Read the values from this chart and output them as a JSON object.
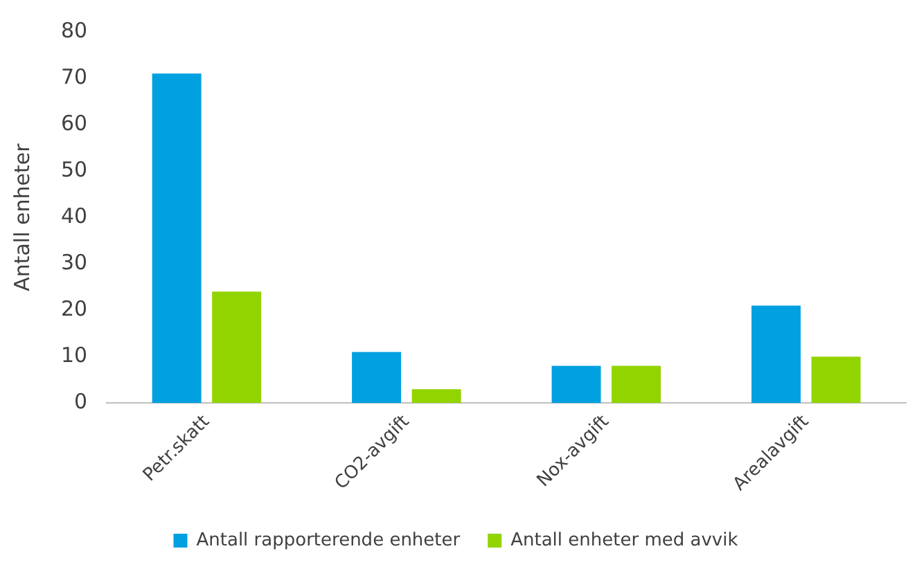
{
  "chart_data": {
    "type": "bar",
    "ylabel": "Antall enheter",
    "categories": [
      "Petr.skatt",
      "CO2-avgift",
      "Nox-avgift",
      "Arealavgift"
    ],
    "series": [
      {
        "name": "Antall rapporterende enheter",
        "color": "#00a0e1",
        "values": [
          71,
          11,
          8,
          21
        ]
      },
      {
        "name": "Antall enheter med avvik",
        "color": "#92d400",
        "values": [
          24,
          3,
          8,
          10
        ]
      }
    ],
    "ylim": [
      0,
      80
    ],
    "yticks": [
      0,
      10,
      20,
      30,
      40,
      50,
      60,
      70,
      80
    ],
    "grid": false,
    "legend": "bottom"
  }
}
